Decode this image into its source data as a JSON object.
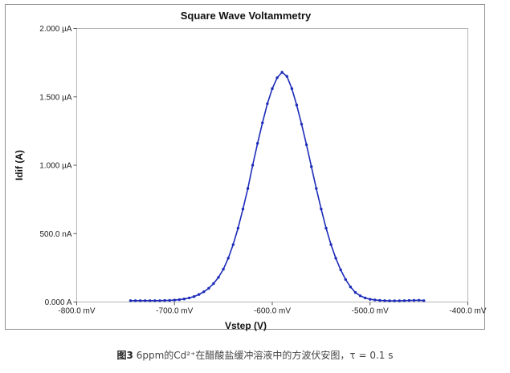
{
  "chart_data": {
    "type": "line",
    "title": "Square Wave Voltammetry",
    "xlabel": "Vstep (V)",
    "ylabel": "Idif (A)",
    "xlim": [
      -800,
      -400
    ],
    "ylim": [
      0,
      2000
    ],
    "x_unit": "mV",
    "y_unit": "nA",
    "x_ticks": [
      {
        "value": -800,
        "label": "-800.0 mV"
      },
      {
        "value": -700,
        "label": "-700.0 mV"
      },
      {
        "value": -600,
        "label": "-600.0 mV"
      },
      {
        "value": -500,
        "label": "-500.0 mV"
      },
      {
        "value": -400,
        "label": "-400.0 mV"
      }
    ],
    "y_ticks": [
      {
        "value": 0,
        "label": "0.000 A"
      },
      {
        "value": 500,
        "label": "500.0 nA"
      },
      {
        "value": 1000,
        "label": "1.000 µA"
      },
      {
        "value": 1500,
        "label": "1.500 µA"
      },
      {
        "value": 2000,
        "label": "2.000 µA"
      }
    ],
    "grid": false,
    "series": [
      {
        "color": "#1c2bb8",
        "x": [
          -745,
          -740,
          -735,
          -730,
          -725,
          -720,
          -715,
          -710,
          -705,
          -700,
          -695,
          -690,
          -685,
          -680,
          -675,
          -670,
          -665,
          -660,
          -655,
          -650,
          -645,
          -640,
          -635,
          -630,
          -625,
          -620,
          -615,
          -610,
          -605,
          -600,
          -595,
          -590,
          -585,
          -580,
          -575,
          -570,
          -565,
          -560,
          -555,
          -550,
          -545,
          -540,
          -535,
          -530,
          -525,
          -520,
          -515,
          -510,
          -505,
          -500,
          -495,
          -490,
          -485,
          -480,
          -475,
          -470,
          -465,
          -460,
          -455,
          -450,
          -445
        ],
        "values": [
          10,
          10,
          10,
          10,
          10,
          10,
          10,
          11,
          12,
          14,
          17,
          22,
          30,
          40,
          55,
          75,
          100,
          135,
          180,
          240,
          320,
          420,
          540,
          680,
          830,
          1000,
          1160,
          1310,
          1450,
          1560,
          1640,
          1680,
          1650,
          1560,
          1440,
          1300,
          1150,
          990,
          830,
          680,
          540,
          420,
          320,
          235,
          165,
          110,
          70,
          45,
          30,
          20,
          15,
          12,
          10,
          9,
          9,
          9,
          10,
          11,
          12,
          13,
          10
        ]
      }
    ]
  },
  "caption": {
    "figure_label": "图3",
    "text": " 6ppm的Cd²⁺在醋酸盐缓冲溶液中的方波伏安图，τ = 0.1 s"
  }
}
